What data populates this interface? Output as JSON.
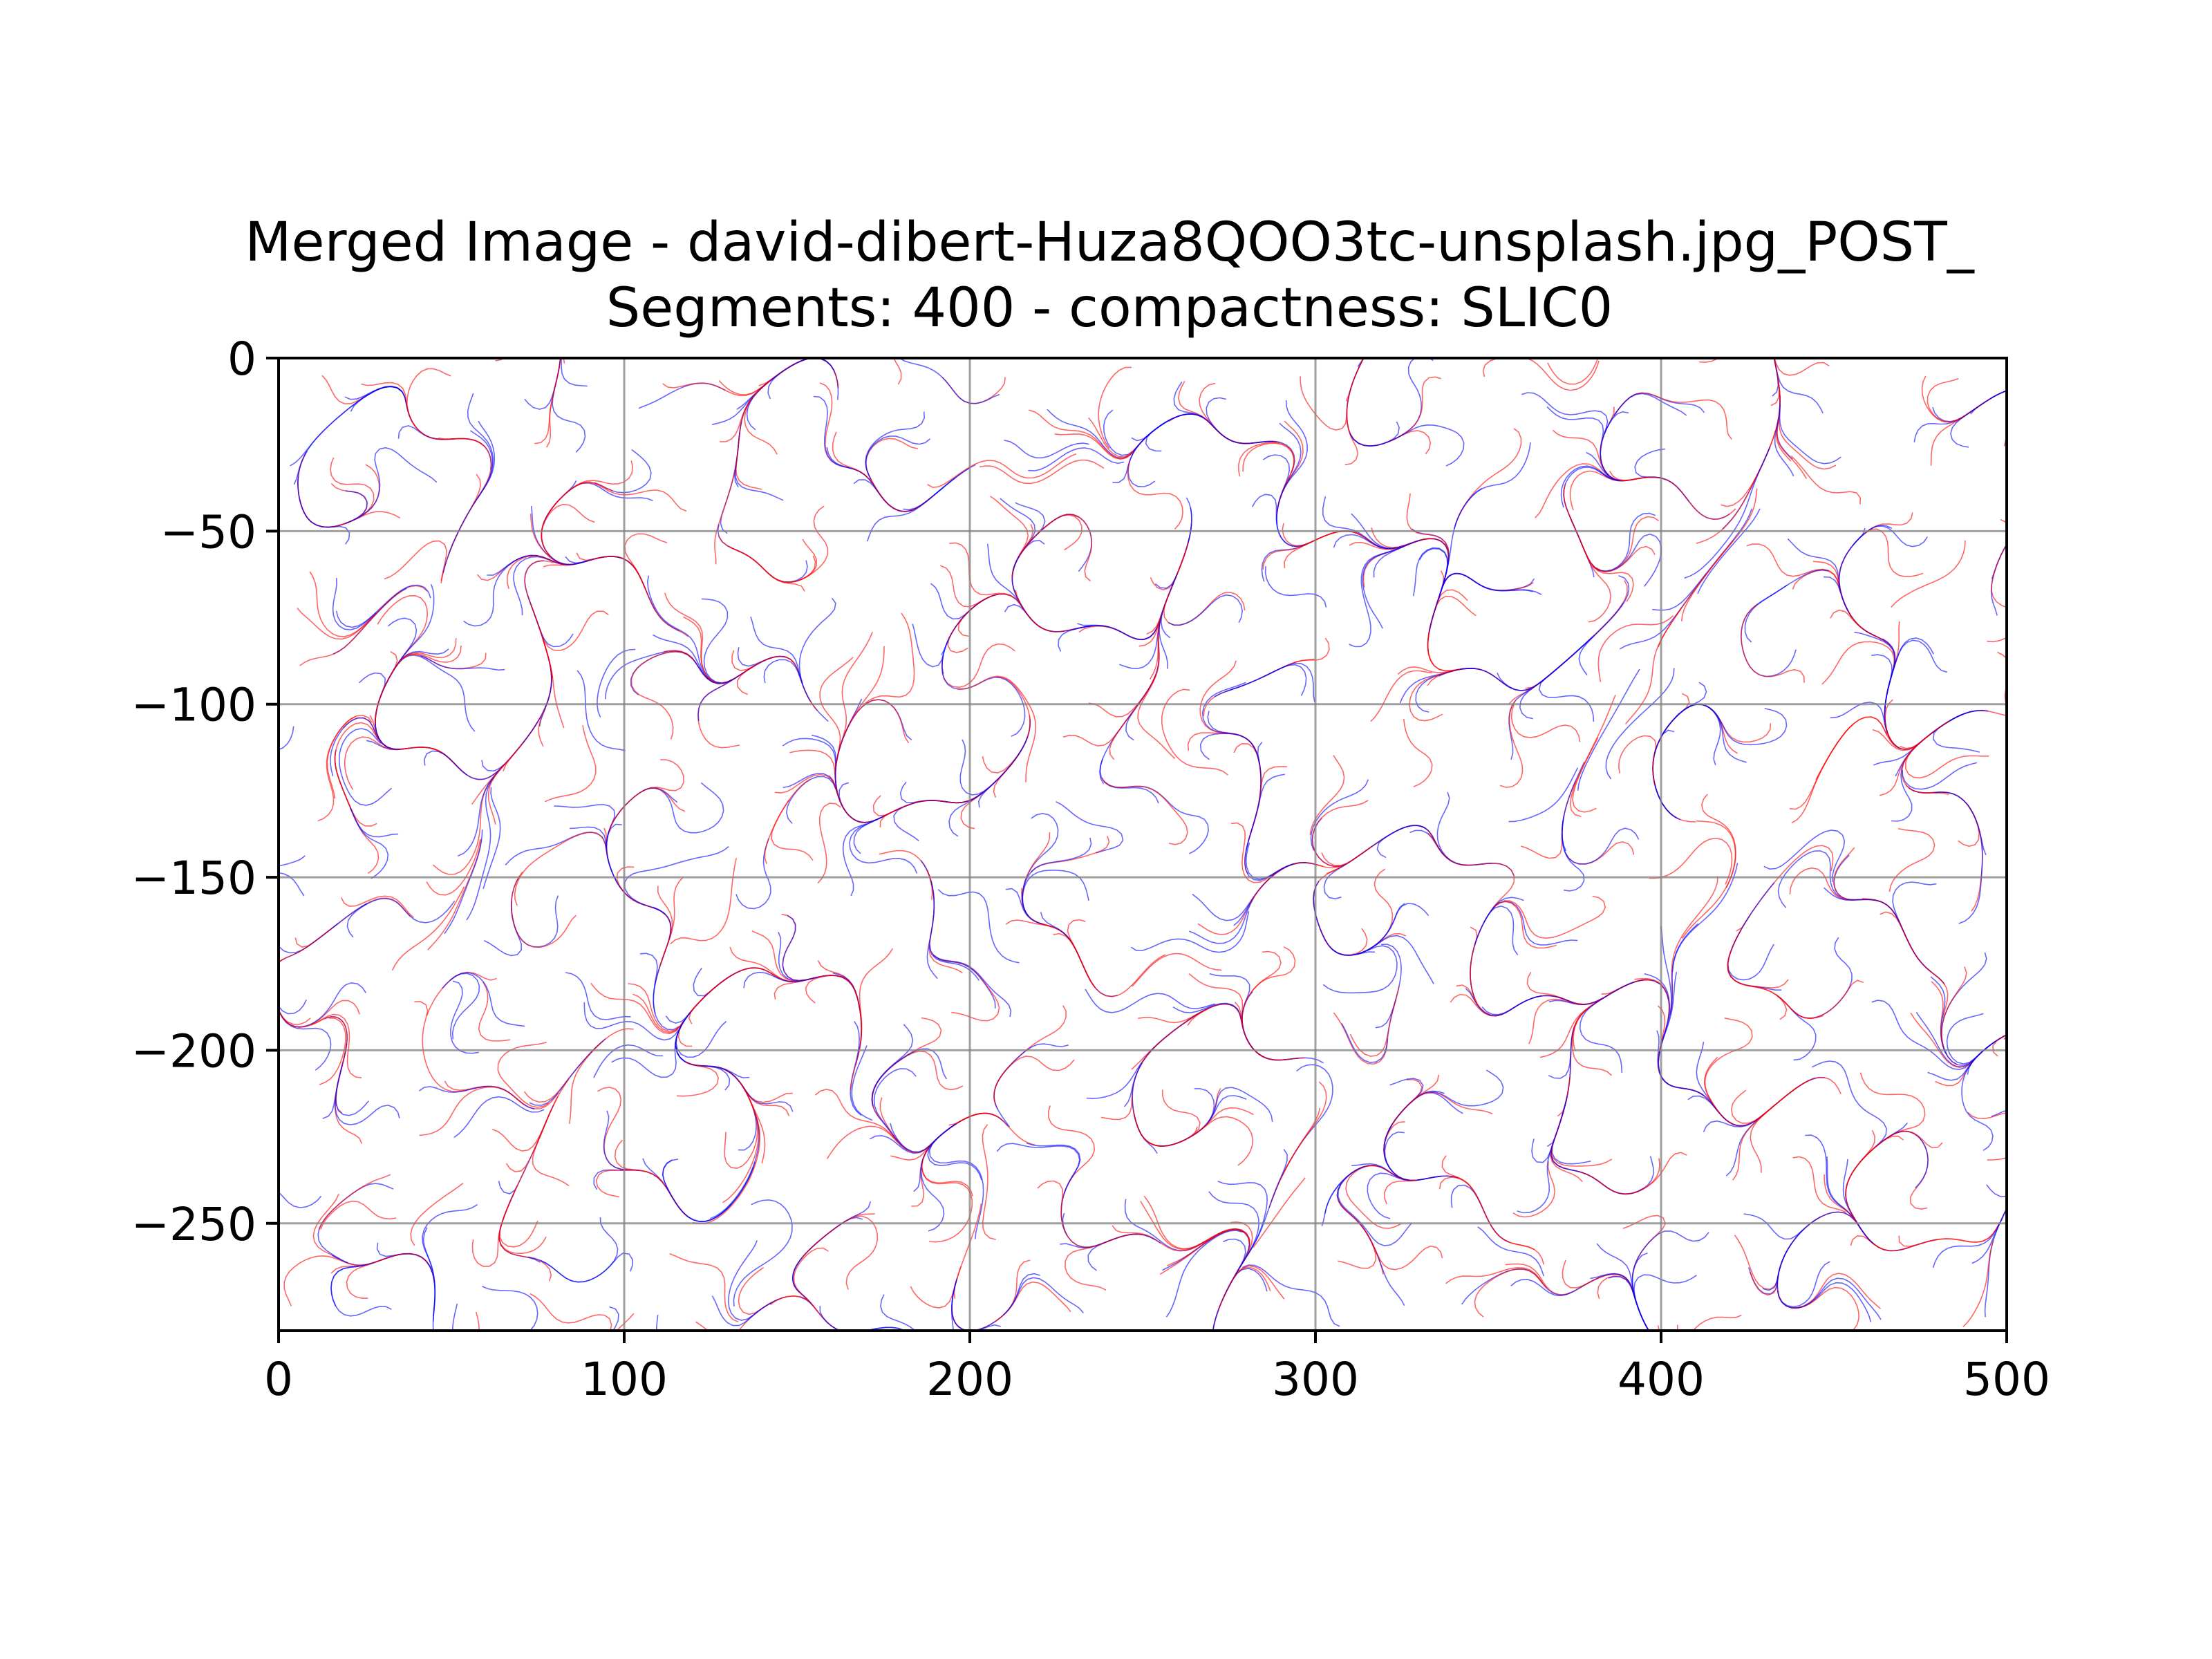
{
  "chart_data": {
    "type": "streamplot",
    "title": "Merged Image - david-dibert-Huza8QOO3tc-unsplash.jpg_POST_",
    "subtitle": "Segments: 400 - compactness: SLIC0",
    "xlabel": "",
    "ylabel": "",
    "xlim": [
      0,
      500
    ],
    "ylim": [
      -281,
      0
    ],
    "x_ticks": [
      0,
      100,
      200,
      300,
      400,
      500
    ],
    "y_ticks": [
      0,
      -50,
      -100,
      -150,
      -200,
      -250
    ],
    "x_tick_labels": [
      "0",
      "100",
      "200",
      "300",
      "400",
      "500"
    ],
    "y_tick_labels": [
      "0",
      "−50",
      "−100",
      "−150",
      "−200",
      "−250"
    ],
    "grid": true,
    "legend": "none",
    "series": [
      {
        "color": "#ff0000"
      },
      {
        "color": "#0000ff"
      }
    ],
    "colors": {
      "grid": "#808080",
      "axes": "#000000",
      "background": "#ffffff"
    }
  }
}
